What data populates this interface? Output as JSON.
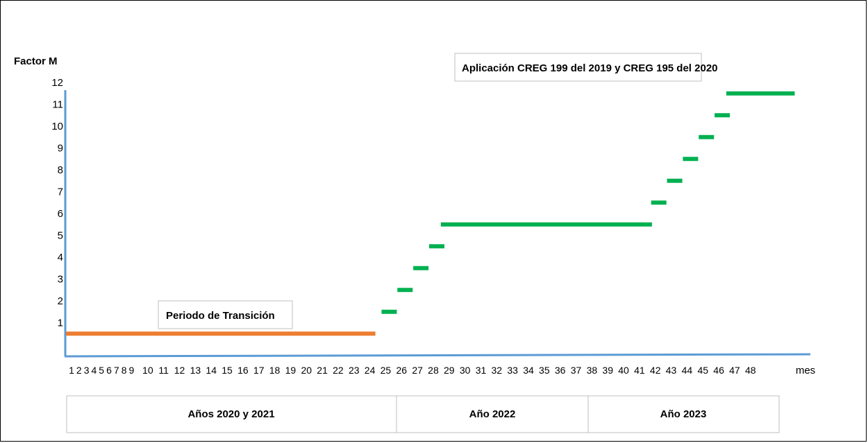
{
  "chart_data": {
    "type": "line",
    "ylabel": "Factor M",
    "xlabel": "mes",
    "xlim": [
      1,
      48
    ],
    "ylim": [
      0,
      12
    ],
    "y_ticks": [
      "12",
      "11",
      "10",
      "9",
      "8",
      "7",
      "6",
      "5",
      "4",
      "3",
      "2",
      "1"
    ],
    "x_ticks": [
      "1",
      "2",
      "3",
      "4",
      "5",
      "6",
      "7",
      "8",
      "9",
      "10",
      "11",
      "12",
      "13",
      "14",
      "15",
      "16",
      "17",
      "18",
      "19",
      "20",
      "21",
      "22",
      "23",
      "24",
      "25",
      "26",
      "27",
      "28",
      "29",
      "30",
      "31",
      "32",
      "33",
      "34",
      "35",
      "36",
      "37",
      "38",
      "39",
      "40",
      "41",
      "42",
      "43",
      "44",
      "45",
      "46",
      "47",
      "48"
    ],
    "series": [
      {
        "name": "Periodo de Transición",
        "color": "#ED7D31",
        "segments": [
          {
            "x_start": 1,
            "x_end": 24,
            "y": 0.5
          }
        ]
      },
      {
        "name": "Aplicación CREG 199 del 2019 y CREG 195 del 2020",
        "color": "#00B050",
        "segments": [
          {
            "x_start": 25,
            "x_end": 25,
            "y": 1.5
          },
          {
            "x_start": 26,
            "x_end": 26,
            "y": 2.5
          },
          {
            "x_start": 27,
            "x_end": 27,
            "y": 3.5
          },
          {
            "x_start": 28,
            "x_end": 28,
            "y": 4.5
          },
          {
            "x_start": 29,
            "x_end": 41,
            "y": 5.5
          },
          {
            "x_start": 42,
            "x_end": 42,
            "y": 6.5
          },
          {
            "x_start": 43,
            "x_end": 43,
            "y": 7.5
          },
          {
            "x_start": 44,
            "x_end": 44,
            "y": 8.5
          },
          {
            "x_start": 45,
            "x_end": 45,
            "y": 9.5
          },
          {
            "x_start": 46,
            "x_end": 46,
            "y": 10.5
          },
          {
            "x_start": 47,
            "x_end": 50,
            "y": 11.5
          }
        ]
      }
    ],
    "annotations": [
      {
        "text": "Periodo de Transición"
      },
      {
        "text": "Aplicación CREG 199 del 2019 y CREG 195 del 2020"
      }
    ],
    "periods": [
      {
        "label": "Años 2020 y 2021",
        "x_start": 1,
        "x_end": 24
      },
      {
        "label": "Año 2022",
        "x_start": 25,
        "x_end": 36
      },
      {
        "label": "Año 2023",
        "x_start": 37,
        "x_end": 48
      }
    ],
    "axis_color": "#5B9BD5",
    "grid": false
  }
}
